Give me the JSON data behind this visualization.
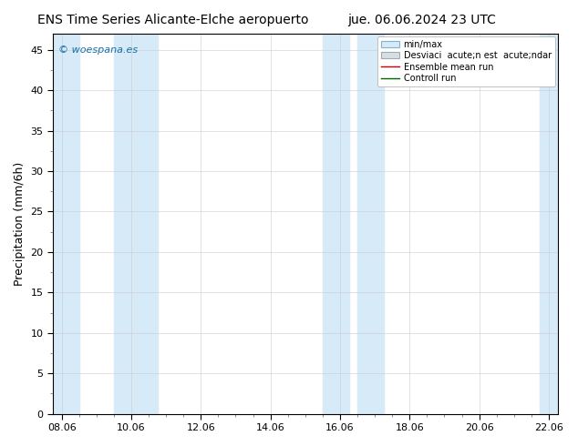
{
  "title_left": "ENS Time Series Alicante-Elche aeropuerto",
  "title_right": "jue. 06.06.2024 23 UTC",
  "ylabel": "Precipitation (mm/6h)",
  "watermark": "© woespana.es",
  "ylim": [
    0,
    47
  ],
  "yticks": [
    0,
    5,
    10,
    15,
    20,
    25,
    30,
    35,
    40,
    45
  ],
  "xtick_labels": [
    "08.06",
    "10.06",
    "12.06",
    "14.06",
    "16.06",
    "18.06",
    "20.06",
    "22.06"
  ],
  "xtick_positions": [
    0,
    2,
    4,
    6,
    8,
    10,
    12,
    14
  ],
  "xlim": [
    -0.25,
    14.25
  ],
  "blue_bands": [
    [
      -0.25,
      0.5
    ],
    [
      1.5,
      2.75
    ],
    [
      7.5,
      8.25
    ],
    [
      8.5,
      9.25
    ],
    [
      13.75,
      14.25
    ]
  ],
  "band_color": "#d6eaf8",
  "background_color": "#ffffff",
  "plot_bg_color": "#ffffff",
  "title_fontsize": 10,
  "axis_label_fontsize": 9,
  "tick_fontsize": 8,
  "watermark_color": "#1a6fa8",
  "legend_minmax_fc": "#d6eaf8",
  "legend_minmax_ec": "#7fb3d3",
  "legend_desvest_fc": "#d8dee4",
  "legend_desvest_ec": "#a0aab2",
  "legend_ens_color": "#cc0000",
  "legend_ctrl_color": "#006600"
}
